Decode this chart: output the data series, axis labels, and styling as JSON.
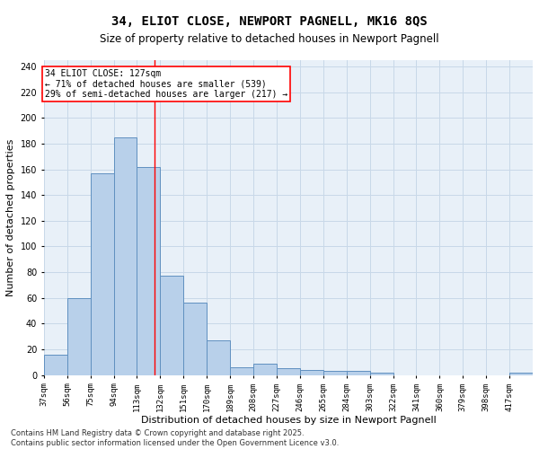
{
  "title_line1": "34, ELIOT CLOSE, NEWPORT PAGNELL, MK16 8QS",
  "title_line2": "Size of property relative to detached houses in Newport Pagnell",
  "xlabel": "Distribution of detached houses by size in Newport Pagnell",
  "ylabel": "Number of detached properties",
  "footer_line1": "Contains HM Land Registry data © Crown copyright and database right 2025.",
  "footer_line2": "Contains public sector information licensed under the Open Government Licence v3.0.",
  "categories": [
    "37sqm",
    "56sqm",
    "75sqm",
    "94sqm",
    "113sqm",
    "132sqm",
    "151sqm",
    "170sqm",
    "189sqm",
    "208sqm",
    "227sqm",
    "246sqm",
    "265sqm",
    "284sqm",
    "303sqm",
    "322sqm",
    "341sqm",
    "360sqm",
    "379sqm",
    "398sqm",
    "417sqm"
  ],
  "values": [
    16,
    60,
    157,
    185,
    162,
    77,
    56,
    27,
    6,
    9,
    5,
    4,
    3,
    3,
    2,
    0,
    0,
    0,
    0,
    0,
    2
  ],
  "bar_color": "#b8d0ea",
  "bar_edge_color": "#6090c0",
  "grid_color": "#c8d8e8",
  "background_color": "#e8f0f8",
  "annotation_box_text": "34 ELIOT CLOSE: 127sqm\n← 71% of detached houses are smaller (539)\n29% of semi-detached houses are larger (217) →",
  "redline_x": 127,
  "bin_edges": [
    37,
    56,
    75,
    94,
    113,
    132,
    151,
    170,
    189,
    208,
    227,
    246,
    265,
    284,
    303,
    322,
    341,
    360,
    379,
    398,
    417,
    436
  ],
  "ylim": [
    0,
    245
  ],
  "yticks": [
    0,
    20,
    40,
    60,
    80,
    100,
    120,
    140,
    160,
    180,
    200,
    220,
    240
  ]
}
